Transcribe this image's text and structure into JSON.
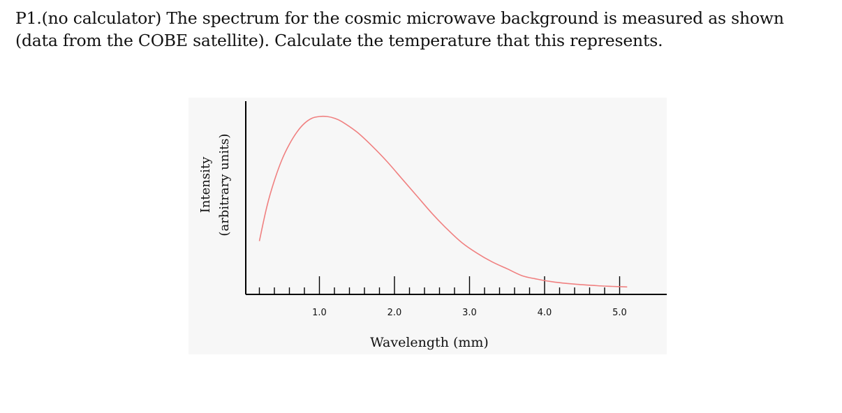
{
  "problem": {
    "line1": "P1.(no calculator) The spectrum for the cosmic microwave background is measured as shown",
    "line2": "(data from the COBE satellite). Calculate the temperature that this represents."
  },
  "chart_data": {
    "type": "line",
    "xlabel": "Wavelength (mm)",
    "ylabel_line1": "Intensity",
    "ylabel_line2": "(arbitrary units)",
    "x_tick_labels": [
      "1.0",
      "2.0",
      "3.0",
      "4.0",
      "5.0"
    ],
    "x_ticks": [
      1.0,
      2.0,
      3.0,
      4.0,
      5.0
    ],
    "xlim": [
      0.0,
      5.3
    ],
    "ylim": [
      0,
      1.0
    ],
    "y_ticks_shown": false,
    "grid": false,
    "line_color": "#f08080",
    "series": [
      {
        "x": [
          0.2,
          0.3,
          0.4,
          0.5,
          0.6,
          0.7,
          0.8,
          0.9,
          1.0,
          1.1,
          1.2,
          1.3,
          1.5,
          1.7,
          1.9,
          2.1,
          2.3,
          2.5,
          2.7,
          2.9,
          3.1,
          3.3,
          3.5,
          3.7,
          3.9,
          4.1,
          4.3,
          4.5,
          4.7,
          4.9,
          5.1
        ],
        "y": [
          0.28,
          0.48,
          0.63,
          0.75,
          0.84,
          0.91,
          0.96,
          0.99,
          1.0,
          1.0,
          0.99,
          0.97,
          0.91,
          0.83,
          0.74,
          0.64,
          0.54,
          0.44,
          0.35,
          0.27,
          0.21,
          0.16,
          0.12,
          0.08,
          0.06,
          0.045,
          0.035,
          0.028,
          0.022,
          0.018,
          0.015
        ]
      }
    ]
  }
}
